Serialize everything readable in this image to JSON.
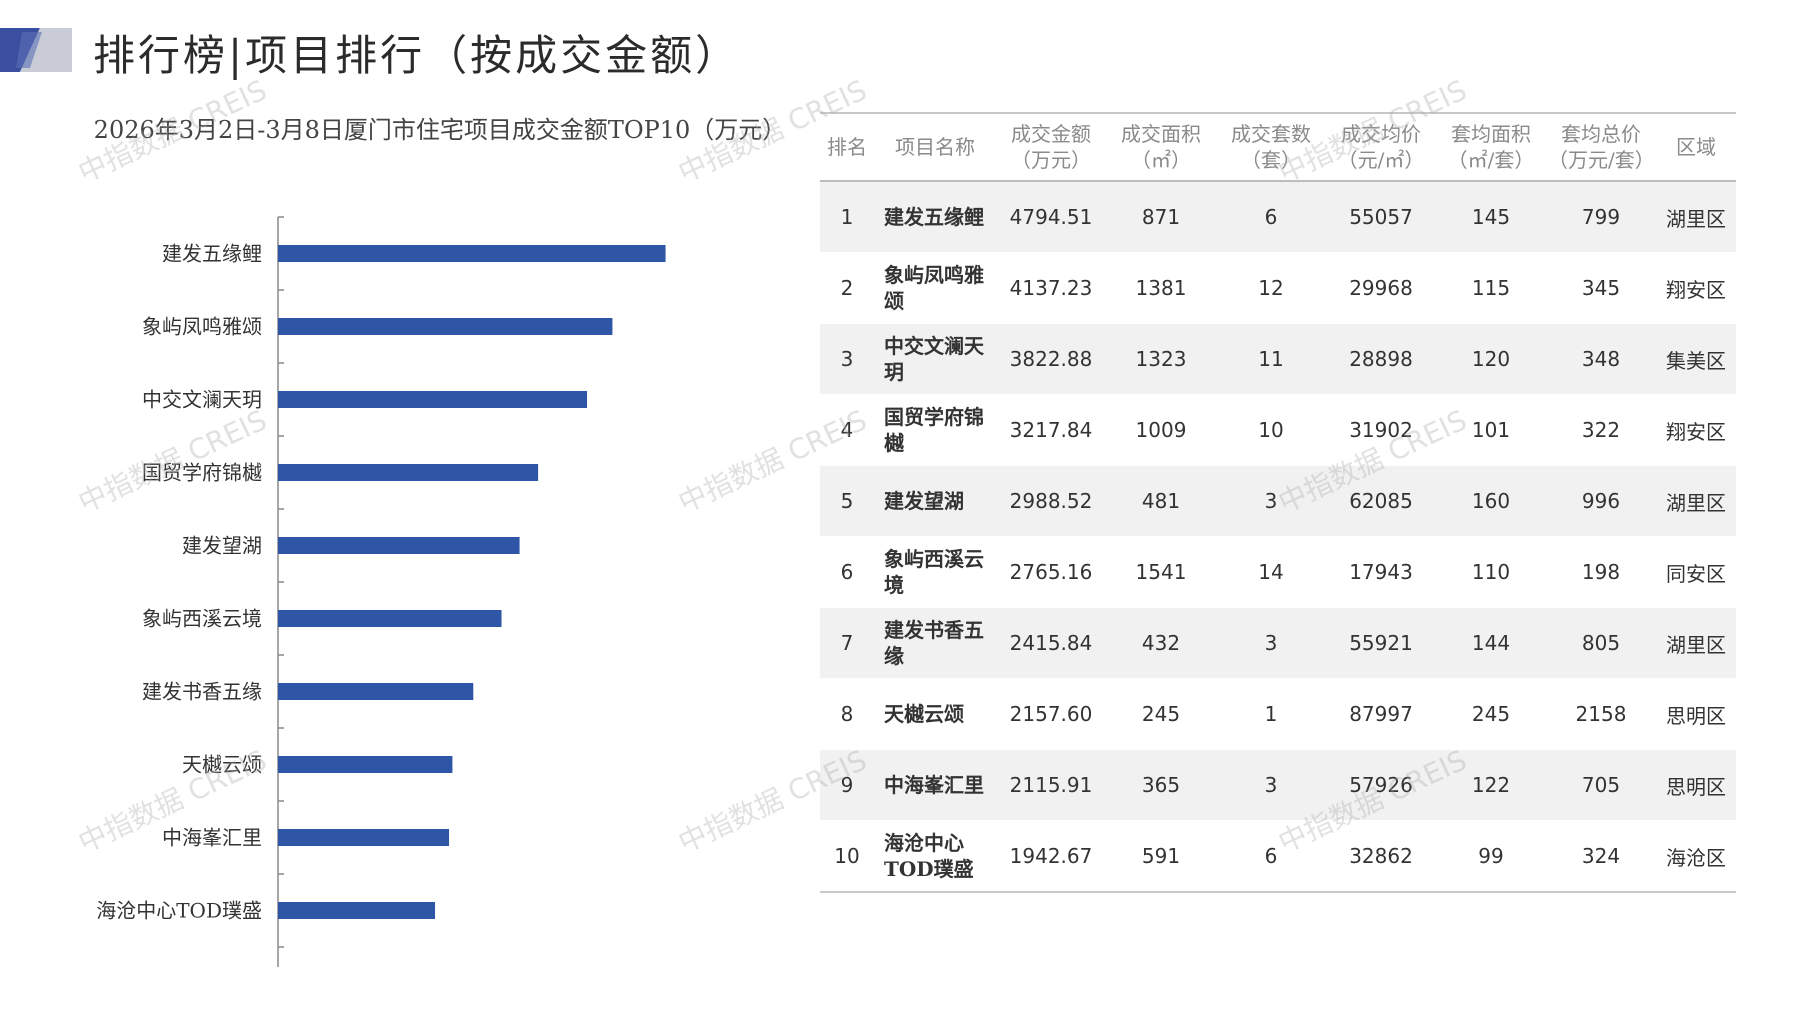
{
  "page": {
    "title": "排行榜|项目排行（按成交金额）",
    "watermark": "中指数据 CREIS"
  },
  "colors": {
    "bar": "#2e55a6",
    "accent_dark": "#3a4fa0",
    "accent_light": "#c9ccd6"
  },
  "chart_data": {
    "type": "bar",
    "orientation": "horizontal",
    "title": "2026年3月2日-3月8日厦门市住宅项目成交金额TOP10（万元）",
    "categories": [
      "建发五缘鲤",
      "象屿凤鸣雅颂",
      "中交文澜天玥",
      "国贸学府锦樾",
      "建发望湖",
      "象屿西溪云境",
      "建发书香五缘",
      "天樾云颂",
      "中海峯汇里",
      "海沧中心TOD璞盛"
    ],
    "values": [
      4794.51,
      4137.23,
      3822.88,
      3217.84,
      2988.52,
      2765.16,
      2415.84,
      2157.6,
      2115.91,
      1942.67
    ],
    "xlim": [
      0,
      6000
    ],
    "grid": false,
    "legend": "none"
  },
  "table": {
    "headers": [
      {
        "l1": "排名",
        "l2": ""
      },
      {
        "l1": "项目名称",
        "l2": ""
      },
      {
        "l1": "成交金额",
        "l2": "（万元）"
      },
      {
        "l1": "成交面积",
        "l2": "（㎡）"
      },
      {
        "l1": "成交套数",
        "l2": "（套）"
      },
      {
        "l1": "成交均价",
        "l2": "（元/㎡）"
      },
      {
        "l1": "套均面积",
        "l2": "（㎡/套）"
      },
      {
        "l1": "套均总价",
        "l2": "（万元/套）"
      },
      {
        "l1": "区域",
        "l2": ""
      }
    ],
    "rows": [
      [
        "1",
        "建发五缘鲤",
        "4794.51",
        "871",
        "6",
        "55057",
        "145",
        "799",
        "湖里区"
      ],
      [
        "2",
        "象屿凤鸣雅颂",
        "4137.23",
        "1381",
        "12",
        "29968",
        "115",
        "345",
        "翔安区"
      ],
      [
        "3",
        "中交文澜天玥",
        "3822.88",
        "1323",
        "11",
        "28898",
        "120",
        "348",
        "集美区"
      ],
      [
        "4",
        "国贸学府锦樾",
        "3217.84",
        "1009",
        "10",
        "31902",
        "101",
        "322",
        "翔安区"
      ],
      [
        "5",
        "建发望湖",
        "2988.52",
        "481",
        "3",
        "62085",
        "160",
        "996",
        "湖里区"
      ],
      [
        "6",
        "象屿西溪云境",
        "2765.16",
        "1541",
        "14",
        "17943",
        "110",
        "198",
        "同安区"
      ],
      [
        "7",
        "建发书香五缘",
        "2415.84",
        "432",
        "3",
        "55921",
        "144",
        "805",
        "湖里区"
      ],
      [
        "8",
        "天樾云颂",
        "2157.60",
        "245",
        "1",
        "87997",
        "245",
        "2158",
        "思明区"
      ],
      [
        "9",
        "中海峯汇里",
        "2115.91",
        "365",
        "3",
        "57926",
        "122",
        "705",
        "思明区"
      ],
      [
        "10",
        "海沧中心TOD璞盛",
        "1942.67",
        "591",
        "6",
        "32862",
        "99",
        "324",
        "海沧区"
      ]
    ]
  }
}
